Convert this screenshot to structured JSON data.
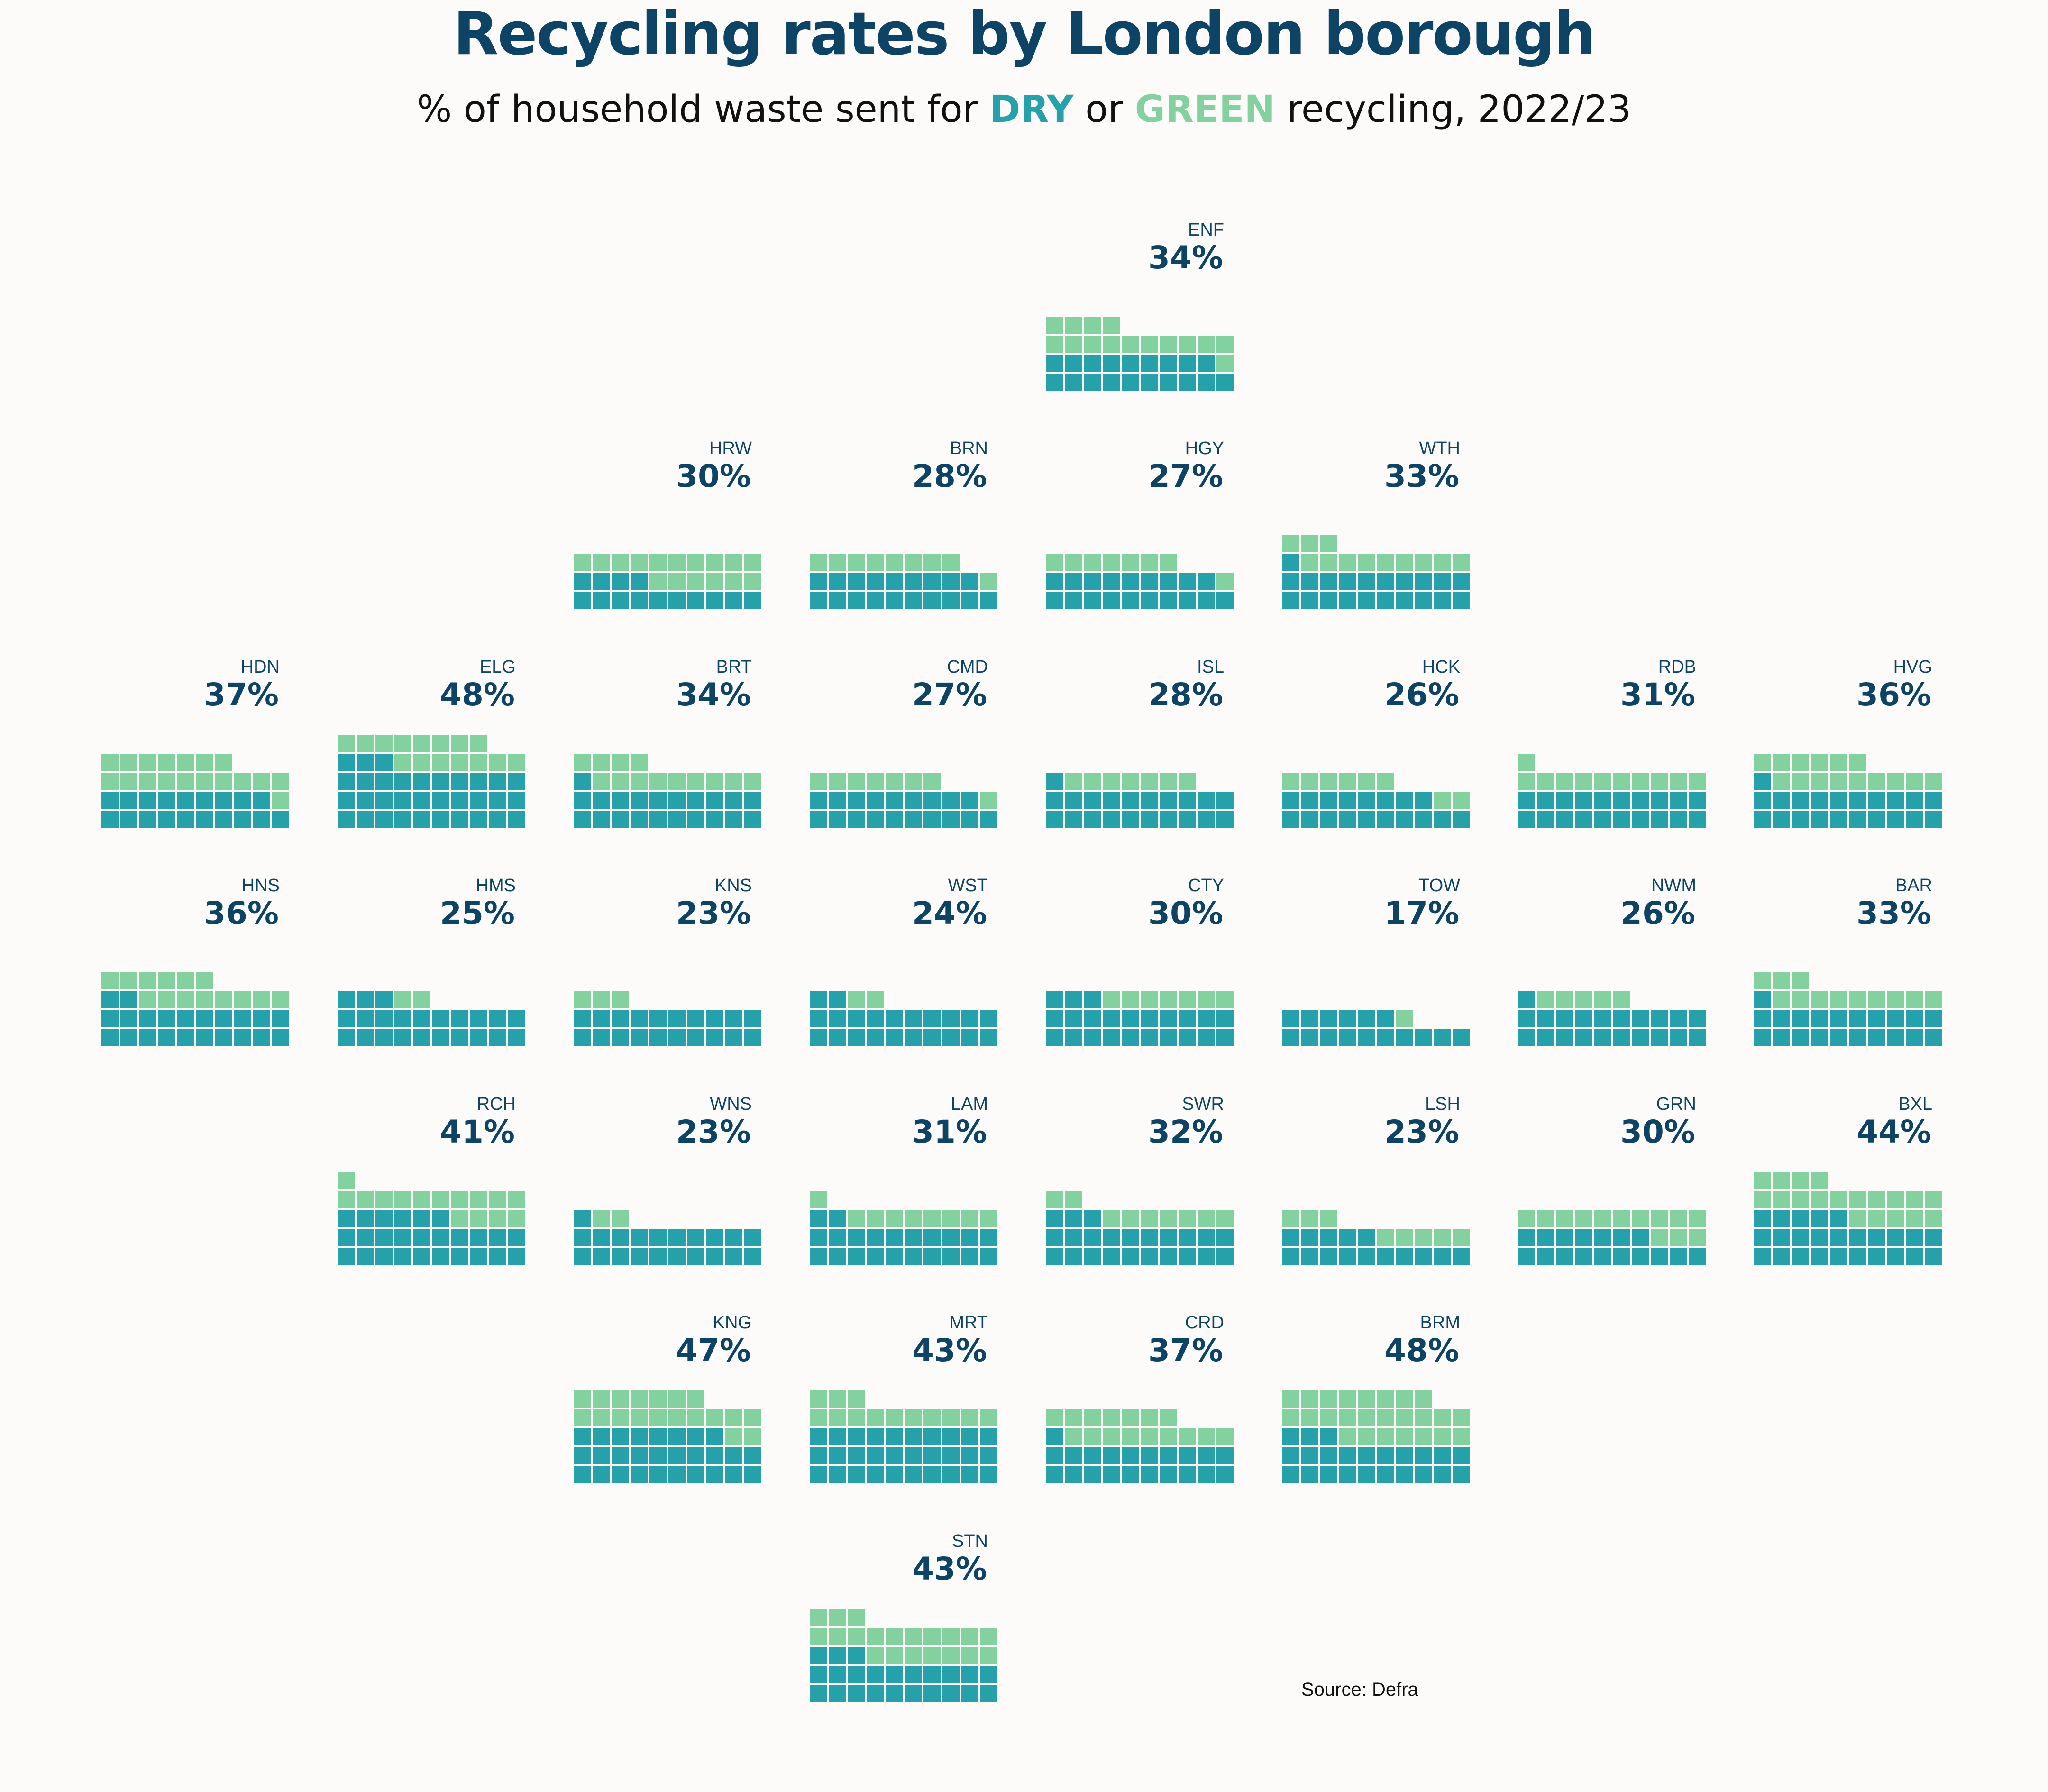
{
  "title": "Recycling rates by London borough",
  "subtitle": {
    "before": "% of household waste sent for ",
    "dry": "DRY",
    "middle": " or ",
    "green": "GREEN",
    "after": " recycling, 2022/23"
  },
  "source": "Source: Defra",
  "colors": {
    "dry": "#27a1a9",
    "green": "#82d19e",
    "text": "#0d4466",
    "background": "#fcfbfa"
  },
  "chart_data": {
    "type": "waffle-tile-map",
    "title": "Recycling rates by London borough",
    "subtitle": "% of household waste sent for DRY or GREEN recycling, 2022/23",
    "units_per_tile": 100,
    "columns_per_tile": 10,
    "series": [
      "DRY",
      "GREEN"
    ],
    "boroughs": [
      {
        "code": "ENF",
        "label": "34%",
        "total": 34,
        "dry": 19,
        "green": 15,
        "row": 0,
        "col": 4
      },
      {
        "code": "HRW",
        "label": "30%",
        "total": 30,
        "dry": 14,
        "green": 16,
        "row": 1,
        "col": 2
      },
      {
        "code": "BRN",
        "label": "28%",
        "total": 28,
        "dry": 19,
        "green": 9,
        "row": 1,
        "col": 3
      },
      {
        "code": "HGY",
        "label": "27%",
        "total": 27,
        "dry": 19,
        "green": 8,
        "row": 1,
        "col": 4
      },
      {
        "code": "WTH",
        "label": "33%",
        "total": 33,
        "dry": 21,
        "green": 12,
        "row": 1,
        "col": 5
      },
      {
        "code": "HDN",
        "label": "37%",
        "total": 37,
        "dry": 19,
        "green": 18,
        "row": 2,
        "col": 0
      },
      {
        "code": "ELG",
        "label": "48%",
        "total": 48,
        "dry": 33,
        "green": 15,
        "row": 2,
        "col": 1
      },
      {
        "code": "BRT",
        "label": "34%",
        "total": 34,
        "dry": 21,
        "green": 13,
        "row": 2,
        "col": 2
      },
      {
        "code": "CMD",
        "label": "27%",
        "total": 27,
        "dry": 19,
        "green": 8,
        "row": 2,
        "col": 3
      },
      {
        "code": "ISL",
        "label": "28%",
        "total": 28,
        "dry": 21,
        "green": 7,
        "row": 2,
        "col": 4
      },
      {
        "code": "HCK",
        "label": "26%",
        "total": 26,
        "dry": 18,
        "green": 8,
        "row": 2,
        "col": 5
      },
      {
        "code": "RDB",
        "label": "31%",
        "total": 31,
        "dry": 20,
        "green": 11,
        "row": 2,
        "col": 6
      },
      {
        "code": "HVG",
        "label": "36%",
        "total": 36,
        "dry": 21,
        "green": 15,
        "row": 2,
        "col": 7
      },
      {
        "code": "HNS",
        "label": "36%",
        "total": 36,
        "dry": 22,
        "green": 14,
        "row": 3,
        "col": 0
      },
      {
        "code": "HMS",
        "label": "25%",
        "total": 25,
        "dry": 23,
        "green": 2,
        "row": 3,
        "col": 1
      },
      {
        "code": "KNS",
        "label": "23%",
        "total": 23,
        "dry": 20,
        "green": 3,
        "row": 3,
        "col": 2
      },
      {
        "code": "WST",
        "label": "24%",
        "total": 24,
        "dry": 22,
        "green": 2,
        "row": 3,
        "col": 3
      },
      {
        "code": "CTY",
        "label": "30%",
        "total": 30,
        "dry": 23,
        "green": 7,
        "row": 3,
        "col": 4
      },
      {
        "code": "TOW",
        "label": "17%",
        "total": 17,
        "dry": 16,
        "green": 1,
        "row": 3,
        "col": 5
      },
      {
        "code": "NWM",
        "label": "26%",
        "total": 26,
        "dry": 21,
        "green": 5,
        "row": 3,
        "col": 6
      },
      {
        "code": "BAR",
        "label": "33%",
        "total": 33,
        "dry": 21,
        "green": 12,
        "row": 3,
        "col": 7
      },
      {
        "code": "RCH",
        "label": "41%",
        "total": 41,
        "dry": 26,
        "green": 15,
        "row": 4,
        "col": 1
      },
      {
        "code": "WNS",
        "label": "23%",
        "total": 23,
        "dry": 21,
        "green": 2,
        "row": 4,
        "col": 2
      },
      {
        "code": "LAM",
        "label": "31%",
        "total": 31,
        "dry": 22,
        "green": 9,
        "row": 4,
        "col": 3
      },
      {
        "code": "SWR",
        "label": "32%",
        "total": 32,
        "dry": 23,
        "green": 9,
        "row": 4,
        "col": 4
      },
      {
        "code": "LSH",
        "label": "23%",
        "total": 23,
        "dry": 15,
        "green": 8,
        "row": 4,
        "col": 5
      },
      {
        "code": "GRN",
        "label": "30%",
        "total": 30,
        "dry": 17,
        "green": 13,
        "row": 4,
        "col": 6
      },
      {
        "code": "BXL",
        "label": "44%",
        "total": 44,
        "dry": 25,
        "green": 19,
        "row": 4,
        "col": 7
      },
      {
        "code": "KNG",
        "label": "47%",
        "total": 47,
        "dry": 28,
        "green": 19,
        "row": 5,
        "col": 2
      },
      {
        "code": "MRT",
        "label": "43%",
        "total": 43,
        "dry": 30,
        "green": 13,
        "row": 5,
        "col": 3
      },
      {
        "code": "CRD",
        "label": "37%",
        "total": 37,
        "dry": 21,
        "green": 16,
        "row": 5,
        "col": 4
      },
      {
        "code": "BRM",
        "label": "48%",
        "total": 48,
        "dry": 23,
        "green": 25,
        "row": 5,
        "col": 5
      },
      {
        "code": "STN",
        "label": "43%",
        "total": 43,
        "dry": 23,
        "green": 20,
        "row": 6,
        "col": 3
      }
    ]
  }
}
